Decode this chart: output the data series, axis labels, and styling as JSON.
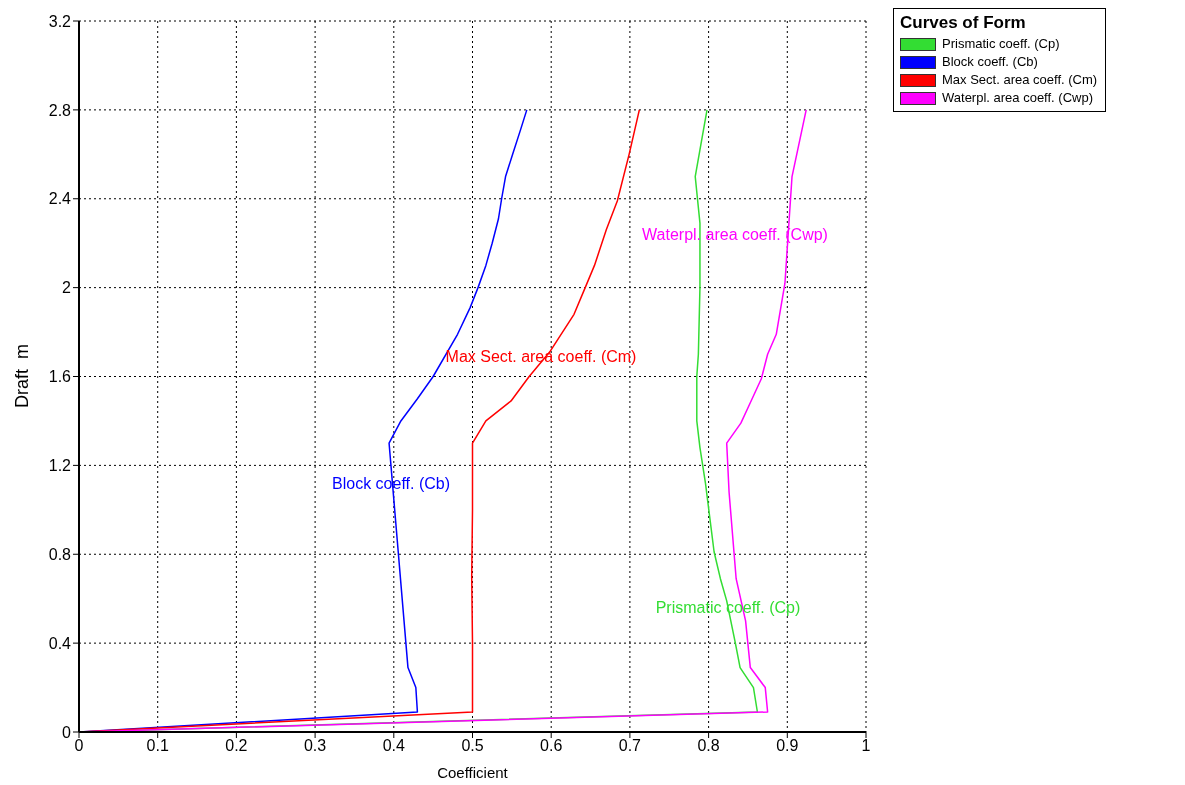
{
  "chart_data": {
    "type": "line",
    "xlabel": "Coefficient",
    "ylabel": "Draft  m",
    "legend_title": "Curves of Form",
    "legend": "top right",
    "grid": true,
    "marker": "none",
    "line_style": "solid",
    "xlim": [
      0,
      1
    ],
    "xticks": [
      0,
      0.1,
      0.2,
      0.3,
      0.4,
      0.5,
      0.6,
      0.7,
      0.8,
      0.9,
      1
    ],
    "ylim": [
      0,
      3.2
    ],
    "yticks": [
      0,
      0.4,
      0.8,
      1.2,
      1.6,
      2,
      2.4,
      2.8,
      3.2
    ],
    "series": [
      {
        "name": "Prismatic coeff. (Cp)",
        "color": "#33dd33",
        "x": [
          0,
          0.862,
          0.857,
          0.84,
          0.834,
          0.823,
          0.815,
          0.807,
          0.796,
          0.789,
          0.785,
          0.785,
          0.787,
          0.789,
          0.789,
          0.783,
          0.789,
          0.798
        ],
        "values": [
          0,
          0.09,
          0.2,
          0.29,
          0.4,
          0.59,
          0.69,
          0.81,
          1.12,
          1.28,
          1.4,
          1.6,
          1.7,
          2,
          2.29,
          2.5,
          2.62,
          2.8
        ]
      },
      {
        "name": "Block coeff. (Cb)",
        "color": "#0000ff",
        "x": [
          0,
          0.43,
          0.428,
          0.418,
          0.394,
          0.409,
          0.43,
          0.45,
          0.481,
          0.497,
          0.507,
          0.517,
          0.525,
          0.533,
          0.537,
          0.542,
          0.551,
          0.561,
          0.569
        ],
        "values": [
          0,
          0.09,
          0.2,
          0.29,
          1.3,
          1.4,
          1.5,
          1.6,
          1.79,
          1.91,
          2,
          2.1,
          2.2,
          2.31,
          2.4,
          2.5,
          2.6,
          2.71,
          2.8
        ]
      },
      {
        "name": "Max Sect. area coeff. (Cm)",
        "color": "#ff0000",
        "x": [
          0,
          0.5,
          0.5,
          0.499,
          0.5,
          0.5,
          0.517,
          0.549,
          0.572,
          0.598,
          0.629,
          0.642,
          0.655,
          0.67,
          0.684,
          0.699,
          0.712
        ],
        "values": [
          0,
          0.09,
          0.4,
          0.7,
          1,
          1.3,
          1.4,
          1.49,
          1.6,
          1.71,
          1.88,
          1.99,
          2.1,
          2.26,
          2.39,
          2.6,
          2.8
        ]
      },
      {
        "name": "Waterpl. area coeff. (Cwp)",
        "color": "#ff00ff",
        "x": [
          0,
          0.875,
          0.872,
          0.853,
          0.847,
          0.835,
          0.826,
          0.823,
          0.841,
          0.854,
          0.867,
          0.875,
          0.886,
          0.897,
          0.906,
          0.924
        ],
        "values": [
          0,
          0.09,
          0.2,
          0.29,
          0.5,
          0.69,
          1.08,
          1.3,
          1.39,
          1.49,
          1.59,
          1.7,
          1.79,
          2.02,
          2.5,
          2.8
        ]
      }
    ],
    "annotations": [
      "Block coeff. (Cb)",
      "Max Sect. area coeff. (Cm)",
      "Waterpl. area coeff. (Cwp)",
      "Prismatic coeff. (Cp)"
    ]
  }
}
